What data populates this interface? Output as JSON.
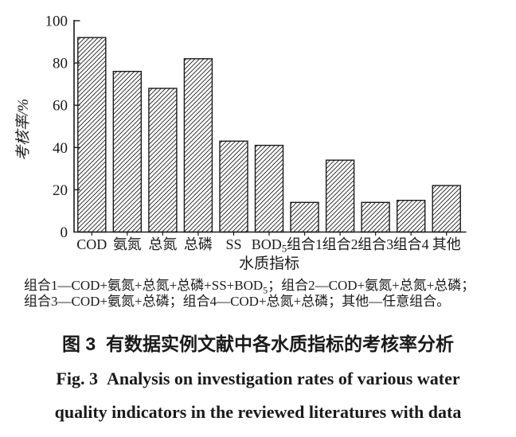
{
  "colors": {
    "ink": "#1a1a1a",
    "background": "#ffffff"
  },
  "chart_data": {
    "type": "bar",
    "title": "",
    "xlabel": "水质指标",
    "ylabel": "考核率/%",
    "ylim": [
      0,
      100
    ],
    "yticks": [
      0,
      20,
      40,
      60,
      80,
      100
    ],
    "grid": false,
    "legend": null,
    "bar_style": "diagonal-hatch",
    "categories": [
      {
        "label": "COD",
        "sub": ""
      },
      {
        "label": "氨氮",
        "sub": ""
      },
      {
        "label": "总氮",
        "sub": ""
      },
      {
        "label": "总磷",
        "sub": ""
      },
      {
        "label": "SS",
        "sub": ""
      },
      {
        "label": "BOD",
        "sub": "5"
      },
      {
        "label": "组合1",
        "sub": ""
      },
      {
        "label": "组合2",
        "sub": ""
      },
      {
        "label": "组合3",
        "sub": ""
      },
      {
        "label": "组合4",
        "sub": ""
      },
      {
        "label": "其他",
        "sub": ""
      }
    ],
    "values": [
      92,
      76,
      68,
      82,
      43,
      41,
      14,
      34,
      14,
      15,
      22
    ]
  },
  "note": {
    "line1_pre": "组合1—COD+氨氮+总氮+总磷+SS+BOD",
    "line1_sub": "5",
    "line1_post": "；组合2—COD+氨氮+总氮+总磷；",
    "line2": "组合3—COD+氨氮+总磷；组合4—COD+总氮+总磷；其他—任意组合。"
  },
  "caption": {
    "zh": "图 3  有数据实例文献中各水质指标的考核率分析",
    "en_line1": "Fig. 3  Analysis on investigation rates of various water",
    "en_line2": "quality indicators in the reviewed literatures with data"
  }
}
